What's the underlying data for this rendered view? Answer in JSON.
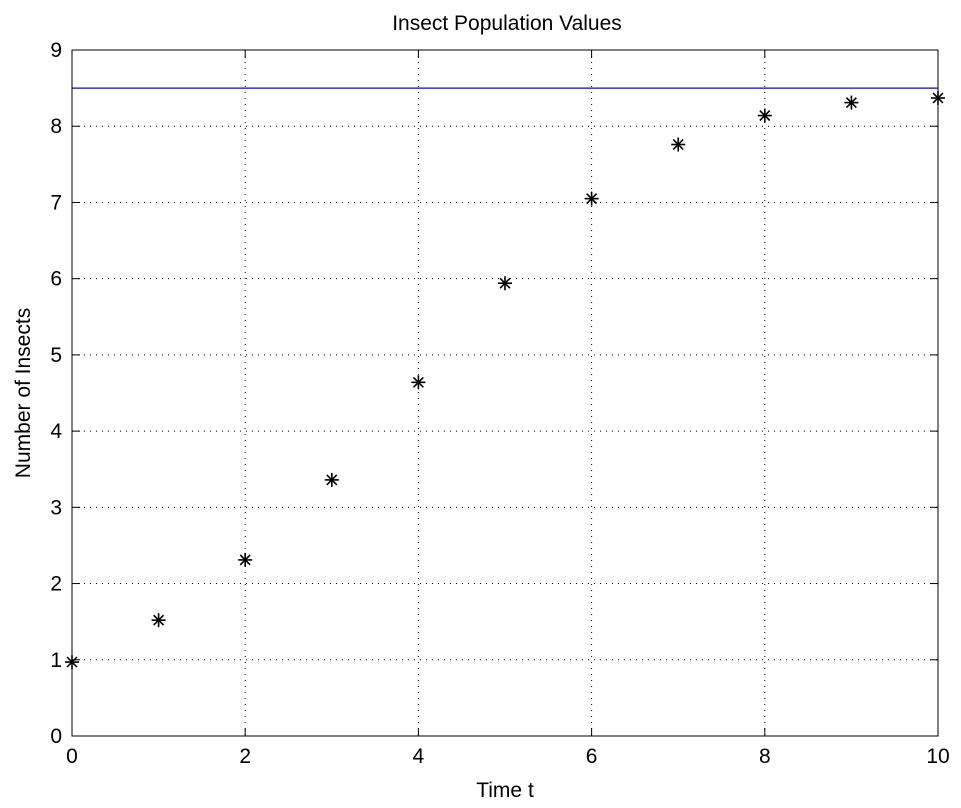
{
  "chart_data": {
    "type": "scatter",
    "title": "Insect Population Values",
    "xlabel": "Time t",
    "ylabel": "Number of Insects",
    "xlim": [
      0,
      10
    ],
    "ylim": [
      0,
      9
    ],
    "x_ticks": [
      0,
      2,
      4,
      6,
      8,
      10
    ],
    "y_ticks": [
      0,
      1,
      2,
      3,
      4,
      5,
      6,
      7,
      8,
      9
    ],
    "grid": true,
    "series": [
      {
        "marker": "asterisk",
        "color": "#000000",
        "x": [
          0,
          1,
          2,
          3,
          4,
          5,
          6,
          7,
          8,
          9,
          10
        ],
        "y": [
          0.97,
          1.52,
          2.31,
          3.36,
          4.64,
          5.94,
          7.05,
          7.76,
          8.14,
          8.31,
          8.37
        ]
      }
    ],
    "reference_lines": [
      {
        "orientation": "horizontal",
        "y": 8.5,
        "color": "#0000ff"
      }
    ]
  }
}
